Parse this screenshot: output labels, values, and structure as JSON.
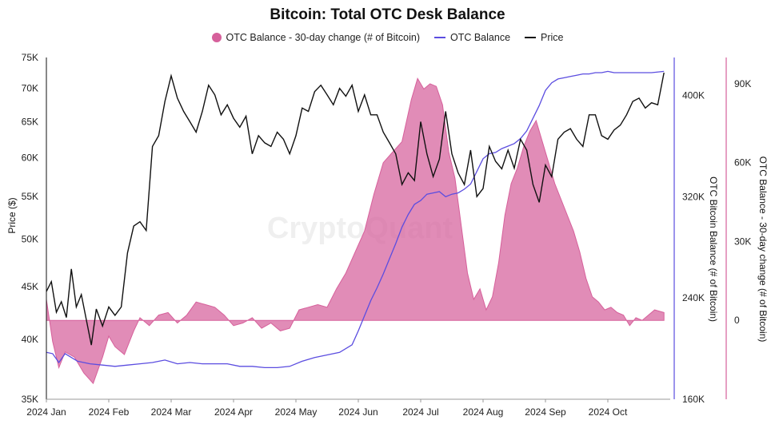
{
  "chart_data": {
    "type": "line",
    "title": "Bitcoin: Total OTC Desk Balance",
    "watermark": "CryptoQuant",
    "legend_position": "top-center",
    "grid": false,
    "x_ticks": [
      "2024 Jan",
      "2024 Feb",
      "2024 Mar",
      "2024 Apr",
      "2024 May",
      "2024 Jun",
      "2024 Jul",
      "2024 Aug",
      "2024 Sep",
      "2024 Oct"
    ],
    "x_range": [
      0,
      10
    ],
    "axes": {
      "price": {
        "title": "Price ($)",
        "scale": "log",
        "range": [
          35000,
          75000
        ],
        "ticks": [
          "35K",
          "40K",
          "45K",
          "50K",
          "55K",
          "60K",
          "65K",
          "70K",
          "75K"
        ],
        "tick_values": [
          35000,
          40000,
          45000,
          50000,
          55000,
          60000,
          65000,
          70000,
          75000
        ]
      },
      "balance": {
        "title": "OTC Bitcoin Balance (# of Bitcoin)",
        "range": [
          160000,
          430000
        ],
        "ticks": [
          "160K",
          "240K",
          "320K",
          "400K"
        ],
        "tick_values": [
          160000,
          240000,
          320000,
          400000
        ],
        "color": "#5b4de0"
      },
      "change": {
        "title": "OTC Balance - 30-day change (# of Bitcoin)",
        "range": [
          -30000,
          100000
        ],
        "ticks": [
          "0",
          "30K",
          "60K",
          "90K"
        ],
        "tick_values": [
          0,
          30000,
          60000,
          90000
        ],
        "color": "#d6609b"
      }
    },
    "series": [
      {
        "name": "OTC Balance - 30-day change (# of Bitcoin)",
        "kind": "area",
        "axis": "change",
        "color": "#d6609b",
        "x": [
          0,
          0.1,
          0.2,
          0.3,
          0.45,
          0.6,
          0.75,
          0.9,
          1.0,
          1.1,
          1.25,
          1.4,
          1.5,
          1.65,
          1.8,
          1.95,
          2.1,
          2.25,
          2.4,
          2.55,
          2.7,
          2.85,
          3.0,
          3.15,
          3.3,
          3.45,
          3.6,
          3.75,
          3.9,
          4.05,
          4.2,
          4.35,
          4.5,
          4.65,
          4.8,
          4.95,
          5.1,
          5.25,
          5.4,
          5.55,
          5.7,
          5.85,
          5.95,
          6.05,
          6.15,
          6.25,
          6.35,
          6.45,
          6.55,
          6.65,
          6.75,
          6.85,
          6.95,
          7.05,
          7.15,
          7.25,
          7.35,
          7.45,
          7.55,
          7.65,
          7.75,
          7.85,
          7.95,
          8.05,
          8.15,
          8.25,
          8.35,
          8.45,
          8.55,
          8.65,
          8.75,
          8.85,
          8.95,
          9.05,
          9.15,
          9.25,
          9.35,
          9.45,
          9.55,
          9.65,
          9.75,
          9.9
        ],
        "values": [
          8000,
          -8000,
          -18000,
          -12000,
          -14000,
          -20000,
          -24000,
          -14000,
          -6000,
          -10000,
          -13000,
          -4000,
          1000,
          -2000,
          2000,
          3000,
          -1000,
          2000,
          7000,
          6000,
          5000,
          2000,
          -2000,
          -1000,
          1000,
          -3000,
          -1000,
          -4000,
          -3000,
          4000,
          5000,
          6000,
          5000,
          12000,
          18000,
          26000,
          34000,
          48000,
          60000,
          64000,
          68000,
          84000,
          92000,
          88000,
          90000,
          89000,
          82000,
          64000,
          54000,
          36000,
          18000,
          8000,
          12000,
          4000,
          9000,
          22000,
          40000,
          52000,
          58000,
          66000,
          72000,
          76000,
          68000,
          60000,
          52000,
          46000,
          40000,
          34000,
          26000,
          16000,
          9000,
          7000,
          4000,
          5000,
          3000,
          2000,
          -2000,
          1000,
          0,
          2000,
          4000,
          3000
        ]
      },
      {
        "name": "OTC Balance",
        "kind": "line",
        "axis": "balance",
        "color": "#5b4de0",
        "x": [
          0,
          0.1,
          0.2,
          0.3,
          0.5,
          0.7,
          0.9,
          1.1,
          1.3,
          1.5,
          1.7,
          1.9,
          2.1,
          2.3,
          2.5,
          2.7,
          2.9,
          3.1,
          3.3,
          3.5,
          3.7,
          3.9,
          4.1,
          4.3,
          4.5,
          4.7,
          4.9,
          5.0,
          5.1,
          5.2,
          5.3,
          5.4,
          5.5,
          5.6,
          5.7,
          5.8,
          5.9,
          6.0,
          6.1,
          6.2,
          6.3,
          6.4,
          6.5,
          6.6,
          6.7,
          6.8,
          6.9,
          7.0,
          7.1,
          7.2,
          7.3,
          7.4,
          7.5,
          7.6,
          7.7,
          7.8,
          7.9,
          8.0,
          8.1,
          8.2,
          8.3,
          8.4,
          8.5,
          8.6,
          8.7,
          8.8,
          8.9,
          9.0,
          9.1,
          9.3,
          9.5,
          9.7,
          9.9
        ],
        "values": [
          197000,
          196000,
          189000,
          196000,
          190000,
          188000,
          187000,
          186000,
          187000,
          188000,
          189000,
          191000,
          188000,
          189000,
          188000,
          188000,
          188000,
          186000,
          186000,
          185000,
          185000,
          186000,
          190000,
          193000,
          195000,
          197000,
          203000,
          214000,
          226000,
          238000,
          248000,
          259000,
          271000,
          283000,
          296000,
          306000,
          314000,
          317000,
          322000,
          323000,
          324000,
          320000,
          322000,
          323000,
          326000,
          330000,
          340000,
          350000,
          354000,
          355000,
          358000,
          360000,
          362000,
          366000,
          372000,
          382000,
          392000,
          404000,
          410000,
          413000,
          414000,
          415000,
          416000,
          417000,
          417000,
          418000,
          418000,
          419000,
          418000,
          418000,
          418000,
          418000,
          419000
        ]
      },
      {
        "name": "Price",
        "kind": "line",
        "axis": "price",
        "color": "#111111",
        "x": [
          0,
          0.08,
          0.16,
          0.24,
          0.32,
          0.4,
          0.48,
          0.56,
          0.64,
          0.72,
          0.8,
          0.9,
          1.0,
          1.1,
          1.2,
          1.3,
          1.4,
          1.5,
          1.6,
          1.7,
          1.8,
          1.9,
          2.0,
          2.1,
          2.2,
          2.3,
          2.4,
          2.5,
          2.6,
          2.7,
          2.8,
          2.9,
          3.0,
          3.1,
          3.2,
          3.3,
          3.4,
          3.5,
          3.6,
          3.7,
          3.8,
          3.9,
          4.0,
          4.1,
          4.2,
          4.3,
          4.4,
          4.5,
          4.6,
          4.7,
          4.8,
          4.9,
          5.0,
          5.1,
          5.2,
          5.3,
          5.4,
          5.5,
          5.6,
          5.7,
          5.8,
          5.9,
          6.0,
          6.1,
          6.2,
          6.3,
          6.4,
          6.5,
          6.6,
          6.7,
          6.8,
          6.9,
          7.0,
          7.1,
          7.2,
          7.3,
          7.4,
          7.5,
          7.6,
          7.7,
          7.8,
          7.9,
          8.0,
          8.1,
          8.2,
          8.3,
          8.4,
          8.5,
          8.6,
          8.7,
          8.8,
          8.9,
          9.0,
          9.1,
          9.2,
          9.3,
          9.4,
          9.5,
          9.6,
          9.7,
          9.8,
          9.9
        ],
        "values": [
          44500,
          45500,
          42500,
          43500,
          42000,
          46800,
          43000,
          44200,
          41800,
          39500,
          42800,
          41200,
          43000,
          42200,
          43000,
          48500,
          51500,
          52000,
          51000,
          61500,
          63000,
          68000,
          72000,
          68500,
          66500,
          65000,
          63500,
          66500,
          70500,
          69000,
          66000,
          67500,
          65500,
          64200,
          65800,
          60500,
          63000,
          62000,
          61500,
          63500,
          62500,
          60500,
          63000,
          67000,
          66500,
          69500,
          70500,
          69000,
          67500,
          70000,
          68800,
          70500,
          66500,
          69000,
          66000,
          66000,
          63500,
          62000,
          60500,
          56500,
          58000,
          57000,
          65000,
          60500,
          57500,
          59800,
          66500,
          60500,
          58000,
          56500,
          61000,
          55000,
          56000,
          61500,
          59500,
          58500,
          61000,
          58600,
          62500,
          61000,
          56500,
          54300,
          59000,
          57500,
          62500,
          63500,
          64000,
          62500,
          61500,
          66000,
          66000,
          63000,
          62500,
          63800,
          64500,
          66000,
          68000,
          68500,
          67000,
          67800,
          67500,
          72500
        ]
      }
    ]
  }
}
